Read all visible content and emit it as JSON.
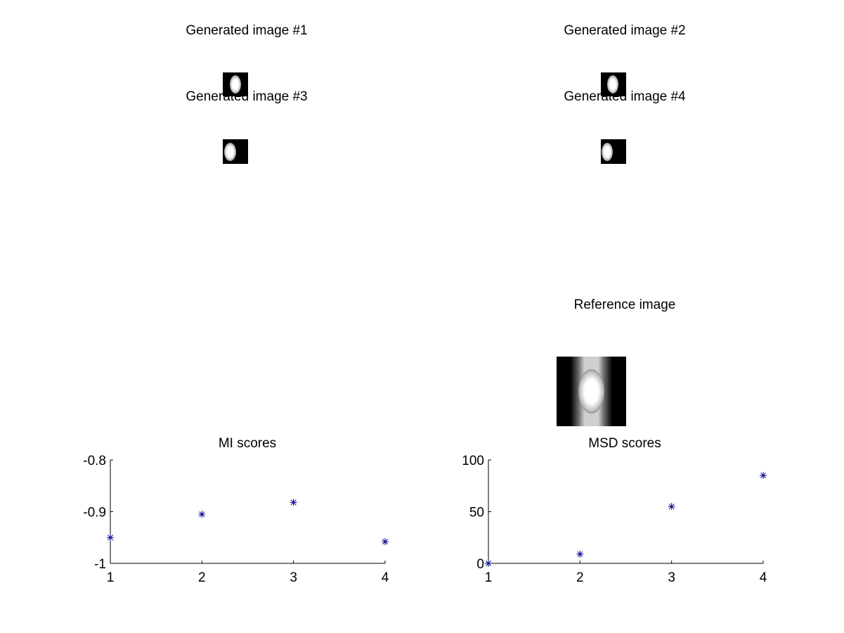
{
  "thumbnails": [
    {
      "title": "Generated image #1"
    },
    {
      "title": "Generated image #2"
    },
    {
      "title": "Generated image #3"
    },
    {
      "title": "Generated image #4"
    },
    {
      "title": "Reference image"
    }
  ],
  "marker_color": "#00008b",
  "chart_data": [
    {
      "type": "scatter",
      "title": "MI scores",
      "xlabel": "",
      "ylabel": "",
      "x": [
        1,
        2,
        3,
        4
      ],
      "y": [
        -0.95,
        -0.905,
        -0.882,
        -0.958
      ],
      "xlim": [
        1,
        4
      ],
      "ylim": [
        -1,
        -0.8
      ],
      "xticks": [
        1,
        2,
        3,
        4
      ],
      "xtick_labels": [
        "1",
        "2",
        "3",
        "4"
      ],
      "yticks": [
        -1,
        -0.9,
        -0.8
      ],
      "ytick_labels": [
        "-1",
        "-0.9",
        "-0.8"
      ],
      "marker": "*",
      "grid": false
    },
    {
      "type": "scatter",
      "title": "MSD scores",
      "xlabel": "",
      "ylabel": "",
      "x": [
        1,
        2,
        3,
        4
      ],
      "y": [
        0,
        9,
        55,
        85
      ],
      "xlim": [
        1,
        4
      ],
      "ylim": [
        0,
        100
      ],
      "xticks": [
        1,
        2,
        3,
        4
      ],
      "xtick_labels": [
        "1",
        "2",
        "3",
        "4"
      ],
      "yticks": [
        0,
        50,
        100
      ],
      "ytick_labels": [
        "0",
        "50",
        "100"
      ],
      "marker": "*",
      "grid": false
    }
  ]
}
